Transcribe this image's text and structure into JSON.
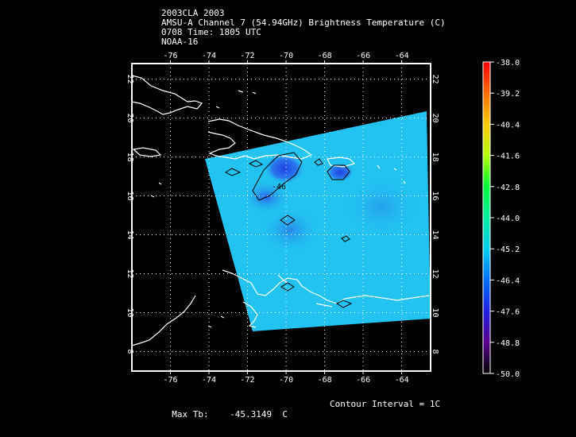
{
  "header": {
    "line1": "2003CLA 2003",
    "line2": "AMSU-A Channel 7 (54.94GHz) Brightness Temperature (C)",
    "line3": "0708 Time: 1805 UTC",
    "line4": "NOAA-16"
  },
  "map": {
    "lon_labels": [
      "-76",
      "-74",
      "-72",
      "-70",
      "-68",
      "-66",
      "-64"
    ],
    "lat_labels": [
      "8",
      "10",
      "12",
      "14",
      "16",
      "18",
      "20",
      "22"
    ],
    "lon_range": [
      -78,
      -62.5
    ],
    "lat_range": [
      7,
      22.8
    ],
    "contour_label": "-46",
    "swath_color": "#22c3f0",
    "cold_core_color": "#1f44e0"
  },
  "colorbar": {
    "ticks": [
      "-38.0",
      "-39.2",
      "-40.4",
      "-41.6",
      "-42.8",
      "-44.0",
      "-45.2",
      "-46.4",
      "-47.6",
      "-48.8",
      "-50.0"
    ],
    "colors": [
      "#ff0000",
      "#ff6a00",
      "#ffcc00",
      "#b4ff00",
      "#00ff3a",
      "#00f0a0",
      "#00d0f0",
      "#0070ff",
      "#2020e0",
      "#5a0090",
      "#000000"
    ]
  },
  "footer": {
    "max_tb_label": "Max Tb:",
    "max_tb_value": "-45.3149",
    "max_tb_unit": "C",
    "contour_interval": "Contour Interval = 1C"
  }
}
